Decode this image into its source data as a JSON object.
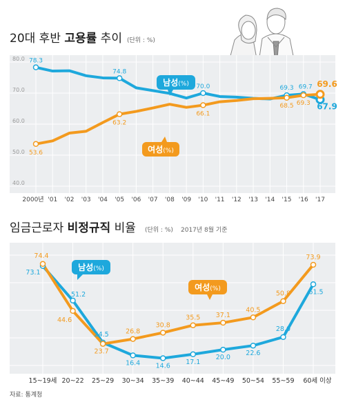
{
  "colors": {
    "male": "#1ea8dc",
    "female": "#f39a1e",
    "panel_bg": "#eceef0",
    "grid": "#ffffff",
    "axis_text": "#666666",
    "title_text": "#222222"
  },
  "source": "자료: 통계청",
  "chart_data": [
    {
      "type": "line",
      "title_regular": "20대 후반 ",
      "title_bold": "고용률",
      "title_suffix": " 추이",
      "unit": "(단위 : %)",
      "x": [
        "2000년",
        "'01",
        "'02",
        "'03",
        "'04",
        "'05",
        "'06",
        "'07",
        "'08",
        "'09",
        "'10",
        "'11",
        "'12",
        "'13",
        "'14",
        "'15",
        "'16",
        "'17"
      ],
      "ylim": [
        40,
        80
      ],
      "yticks": [
        "40.0",
        "50.0",
        "60.0",
        "70.0",
        "80.0"
      ],
      "grid": true,
      "series": [
        {
          "name": "남성(%)",
          "label_word": "남성",
          "label_unit": "(%)",
          "color": "male",
          "values": [
            78.3,
            77.1,
            77.2,
            75.6,
            74.9,
            74.8,
            71.7,
            70.8,
            69.9,
            68.4,
            70.0,
            68.9,
            68.7,
            68.3,
            68.1,
            69.3,
            69.7,
            67.9
          ],
          "labels": {
            "0": "78.3",
            "5": "74.8",
            "10": "70.0",
            "15": "69.3",
            "16": "69.7",
            "17": "67.9"
          }
        },
        {
          "name": "여성(%)",
          "label_word": "여성",
          "label_unit": "(%)",
          "color": "female",
          "values": [
            53.6,
            54.6,
            57.1,
            57.7,
            60.5,
            63.2,
            64.1,
            65.2,
            66.4,
            65.4,
            66.1,
            67.2,
            67.6,
            68.2,
            68.3,
            68.5,
            69.3,
            69.6
          ],
          "labels": {
            "0": "53.6",
            "5": "63.2",
            "10": "66.1",
            "15": "68.5",
            "16": "69.3",
            "17": "69.6"
          }
        }
      ]
    },
    {
      "type": "line",
      "title_regular": "임금근로자 ",
      "title_bold": "비정규직",
      "title_suffix": " 비율",
      "unit": "(단위 : %)",
      "note": "2017년 8월 기준",
      "x": [
        "15~19세",
        "20~22",
        "25~29",
        "30~34",
        "35~39",
        "40~44",
        "45~49",
        "50~54",
        "55~59",
        "60세 이상"
      ],
      "grid": true,
      "series": [
        {
          "name": "남성(%)",
          "label_word": "남성",
          "label_unit": "(%)",
          "color": "male",
          "values": [
            73.1,
            51.2,
            24.5,
            16.4,
            14.6,
            17.1,
            20.0,
            22.6,
            28.0,
            61.5
          ]
        },
        {
          "name": "여성(%)",
          "label_word": "여성",
          "label_unit": "(%)",
          "color": "female",
          "values": [
            74.4,
            44.6,
            23.7,
            26.8,
            30.8,
            35.5,
            37.1,
            40.5,
            50.8,
            73.9
          ]
        }
      ]
    }
  ]
}
